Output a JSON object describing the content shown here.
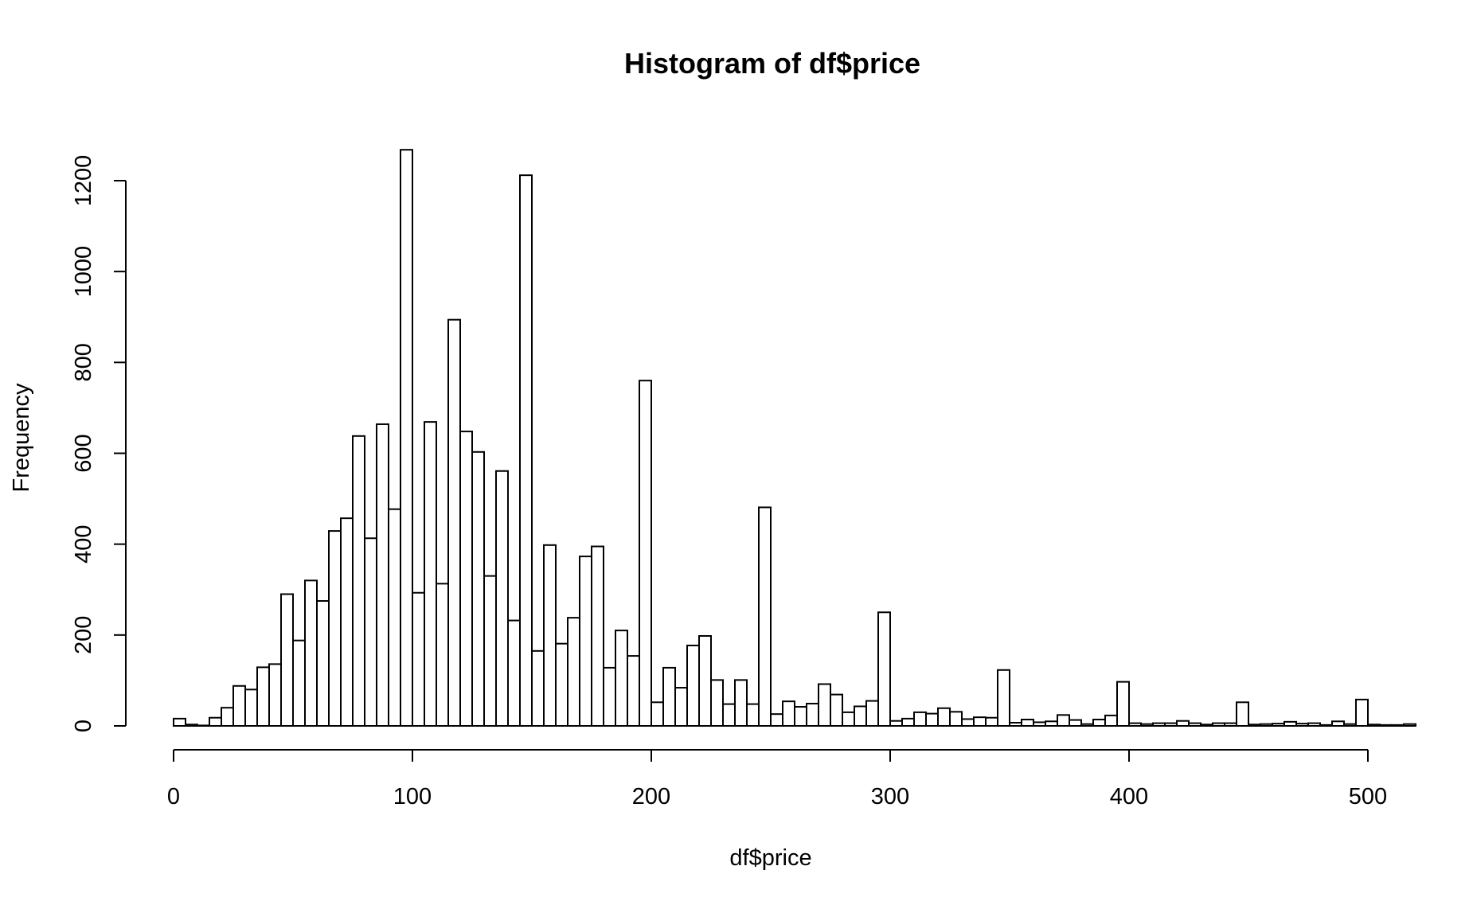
{
  "chart_data": {
    "type": "bar",
    "title": "Histogram of df$price",
    "xlabel": "df$price",
    "ylabel": "Frequency",
    "xlim": [
      0,
      520
    ],
    "ylim": [
      0,
      1280
    ],
    "bin_width": 5,
    "x_ticks": [
      0,
      100,
      200,
      300,
      400,
      500
    ],
    "y_ticks": [
      0,
      200,
      400,
      600,
      800,
      1000,
      1200
    ],
    "grid": false,
    "legend": "none",
    "bins_start": [
      0,
      5,
      10,
      15,
      20,
      25,
      30,
      35,
      40,
      45,
      50,
      55,
      60,
      65,
      70,
      75,
      80,
      85,
      90,
      95,
      100,
      105,
      110,
      115,
      120,
      125,
      130,
      135,
      140,
      145,
      150,
      155,
      160,
      165,
      170,
      175,
      180,
      185,
      190,
      195,
      200,
      205,
      210,
      215,
      220,
      225,
      230,
      235,
      240,
      245,
      250,
      255,
      260,
      265,
      270,
      275,
      280,
      285,
      290,
      295,
      300,
      305,
      310,
      315,
      320,
      325,
      330,
      335,
      340,
      345,
      350,
      355,
      360,
      365,
      370,
      375,
      380,
      385,
      390,
      395,
      400,
      405,
      410,
      415,
      420,
      425,
      430,
      435,
      440,
      445,
      450,
      455,
      460,
      465,
      470,
      475,
      480,
      485,
      490,
      495,
      500,
      505,
      510,
      515
    ],
    "values": [
      16,
      3,
      1,
      18,
      40,
      88,
      80,
      129,
      136,
      290,
      188,
      320,
      275,
      429,
      457,
      638,
      413,
      664,
      477,
      1268,
      293,
      669,
      313,
      894,
      648,
      603,
      330,
      561,
      232,
      1212,
      165,
      398,
      181,
      238,
      373,
      395,
      128,
      210,
      154,
      760,
      52,
      128,
      84,
      177,
      198,
      101,
      48,
      101,
      48,
      481,
      26,
      54,
      42,
      49,
      92,
      69,
      30,
      43,
      55,
      250,
      11,
      16,
      30,
      27,
      39,
      31,
      15,
      19,
      18,
      123,
      7,
      14,
      8,
      10,
      24,
      13,
      4,
      14,
      23,
      97,
      6,
      4,
      6,
      6,
      11,
      6,
      3,
      6,
      6,
      52,
      3,
      4,
      5,
      9,
      5,
      6,
      2,
      10,
      4,
      58,
      3,
      2,
      2,
      4
    ]
  }
}
